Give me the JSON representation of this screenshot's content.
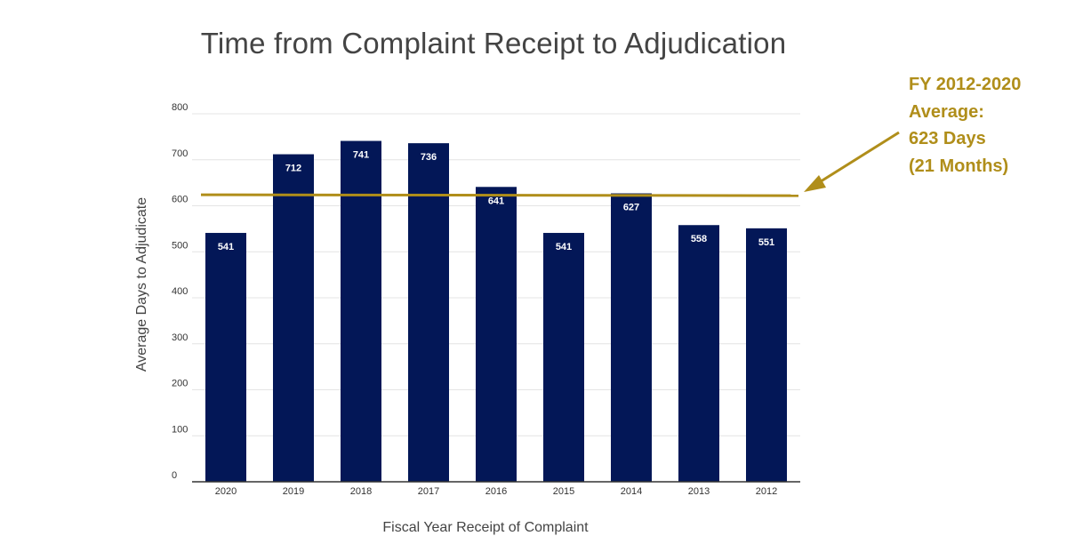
{
  "chart_data": {
    "type": "bar",
    "title": "Time from Complaint Receipt to Adjudication",
    "xlabel": "Fiscal Year Receipt of Complaint",
    "ylabel": "Average Days to Adjudicate",
    "categories": [
      "2020",
      "2019",
      "2018",
      "2017",
      "2016",
      "2015",
      "2014",
      "2013",
      "2012"
    ],
    "values": [
      541,
      712,
      741,
      736,
      641,
      541,
      627,
      558,
      551
    ],
    "ylim": [
      0,
      800
    ],
    "yticks": [
      "0",
      "100",
      "200",
      "300",
      "400",
      "500",
      "600",
      "700",
      "800"
    ],
    "grid": true,
    "average_line": {
      "value": 623,
      "label_lines": [
        "FY 2012-2020",
        "Average:",
        "623 Days",
        "(21 Months)"
      ]
    },
    "colors": {
      "bar": "#031757",
      "average": "#B08E1A",
      "grid": "#e4e4e4",
      "axis": "#333333"
    }
  }
}
